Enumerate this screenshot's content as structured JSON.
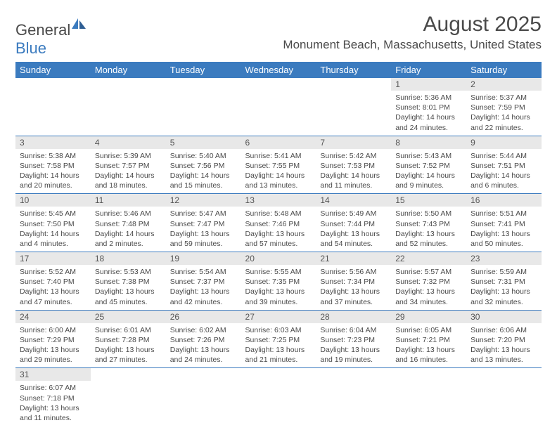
{
  "logo": {
    "text1": "General",
    "text2": "Blue"
  },
  "title": "August 2025",
  "location": "Monument Beach, Massachusetts, United States",
  "colors": {
    "accent": "#3b7bbf",
    "daynum_bg": "#e8e8e8",
    "text": "#4a4a4a"
  },
  "weekdays": [
    "Sunday",
    "Monday",
    "Tuesday",
    "Wednesday",
    "Thursday",
    "Friday",
    "Saturday"
  ],
  "weeks": [
    [
      null,
      null,
      null,
      null,
      null,
      {
        "n": "1",
        "sr": "Sunrise: 5:36 AM",
        "ss": "Sunset: 8:01 PM",
        "dl": "Daylight: 14 hours and 24 minutes."
      },
      {
        "n": "2",
        "sr": "Sunrise: 5:37 AM",
        "ss": "Sunset: 7:59 PM",
        "dl": "Daylight: 14 hours and 22 minutes."
      }
    ],
    [
      {
        "n": "3",
        "sr": "Sunrise: 5:38 AM",
        "ss": "Sunset: 7:58 PM",
        "dl": "Daylight: 14 hours and 20 minutes."
      },
      {
        "n": "4",
        "sr": "Sunrise: 5:39 AM",
        "ss": "Sunset: 7:57 PM",
        "dl": "Daylight: 14 hours and 18 minutes."
      },
      {
        "n": "5",
        "sr": "Sunrise: 5:40 AM",
        "ss": "Sunset: 7:56 PM",
        "dl": "Daylight: 14 hours and 15 minutes."
      },
      {
        "n": "6",
        "sr": "Sunrise: 5:41 AM",
        "ss": "Sunset: 7:55 PM",
        "dl": "Daylight: 14 hours and 13 minutes."
      },
      {
        "n": "7",
        "sr": "Sunrise: 5:42 AM",
        "ss": "Sunset: 7:53 PM",
        "dl": "Daylight: 14 hours and 11 minutes."
      },
      {
        "n": "8",
        "sr": "Sunrise: 5:43 AM",
        "ss": "Sunset: 7:52 PM",
        "dl": "Daylight: 14 hours and 9 minutes."
      },
      {
        "n": "9",
        "sr": "Sunrise: 5:44 AM",
        "ss": "Sunset: 7:51 PM",
        "dl": "Daylight: 14 hours and 6 minutes."
      }
    ],
    [
      {
        "n": "10",
        "sr": "Sunrise: 5:45 AM",
        "ss": "Sunset: 7:50 PM",
        "dl": "Daylight: 14 hours and 4 minutes."
      },
      {
        "n": "11",
        "sr": "Sunrise: 5:46 AM",
        "ss": "Sunset: 7:48 PM",
        "dl": "Daylight: 14 hours and 2 minutes."
      },
      {
        "n": "12",
        "sr": "Sunrise: 5:47 AM",
        "ss": "Sunset: 7:47 PM",
        "dl": "Daylight: 13 hours and 59 minutes."
      },
      {
        "n": "13",
        "sr": "Sunrise: 5:48 AM",
        "ss": "Sunset: 7:46 PM",
        "dl": "Daylight: 13 hours and 57 minutes."
      },
      {
        "n": "14",
        "sr": "Sunrise: 5:49 AM",
        "ss": "Sunset: 7:44 PM",
        "dl": "Daylight: 13 hours and 54 minutes."
      },
      {
        "n": "15",
        "sr": "Sunrise: 5:50 AM",
        "ss": "Sunset: 7:43 PM",
        "dl": "Daylight: 13 hours and 52 minutes."
      },
      {
        "n": "16",
        "sr": "Sunrise: 5:51 AM",
        "ss": "Sunset: 7:41 PM",
        "dl": "Daylight: 13 hours and 50 minutes."
      }
    ],
    [
      {
        "n": "17",
        "sr": "Sunrise: 5:52 AM",
        "ss": "Sunset: 7:40 PM",
        "dl": "Daylight: 13 hours and 47 minutes."
      },
      {
        "n": "18",
        "sr": "Sunrise: 5:53 AM",
        "ss": "Sunset: 7:38 PM",
        "dl": "Daylight: 13 hours and 45 minutes."
      },
      {
        "n": "19",
        "sr": "Sunrise: 5:54 AM",
        "ss": "Sunset: 7:37 PM",
        "dl": "Daylight: 13 hours and 42 minutes."
      },
      {
        "n": "20",
        "sr": "Sunrise: 5:55 AM",
        "ss": "Sunset: 7:35 PM",
        "dl": "Daylight: 13 hours and 39 minutes."
      },
      {
        "n": "21",
        "sr": "Sunrise: 5:56 AM",
        "ss": "Sunset: 7:34 PM",
        "dl": "Daylight: 13 hours and 37 minutes."
      },
      {
        "n": "22",
        "sr": "Sunrise: 5:57 AM",
        "ss": "Sunset: 7:32 PM",
        "dl": "Daylight: 13 hours and 34 minutes."
      },
      {
        "n": "23",
        "sr": "Sunrise: 5:59 AM",
        "ss": "Sunset: 7:31 PM",
        "dl": "Daylight: 13 hours and 32 minutes."
      }
    ],
    [
      {
        "n": "24",
        "sr": "Sunrise: 6:00 AM",
        "ss": "Sunset: 7:29 PM",
        "dl": "Daylight: 13 hours and 29 minutes."
      },
      {
        "n": "25",
        "sr": "Sunrise: 6:01 AM",
        "ss": "Sunset: 7:28 PM",
        "dl": "Daylight: 13 hours and 27 minutes."
      },
      {
        "n": "26",
        "sr": "Sunrise: 6:02 AM",
        "ss": "Sunset: 7:26 PM",
        "dl": "Daylight: 13 hours and 24 minutes."
      },
      {
        "n": "27",
        "sr": "Sunrise: 6:03 AM",
        "ss": "Sunset: 7:25 PM",
        "dl": "Daylight: 13 hours and 21 minutes."
      },
      {
        "n": "28",
        "sr": "Sunrise: 6:04 AM",
        "ss": "Sunset: 7:23 PM",
        "dl": "Daylight: 13 hours and 19 minutes."
      },
      {
        "n": "29",
        "sr": "Sunrise: 6:05 AM",
        "ss": "Sunset: 7:21 PM",
        "dl": "Daylight: 13 hours and 16 minutes."
      },
      {
        "n": "30",
        "sr": "Sunrise: 6:06 AM",
        "ss": "Sunset: 7:20 PM",
        "dl": "Daylight: 13 hours and 13 minutes."
      }
    ],
    [
      {
        "n": "31",
        "sr": "Sunrise: 6:07 AM",
        "ss": "Sunset: 7:18 PM",
        "dl": "Daylight: 13 hours and 11 minutes."
      },
      null,
      null,
      null,
      null,
      null,
      null
    ]
  ]
}
